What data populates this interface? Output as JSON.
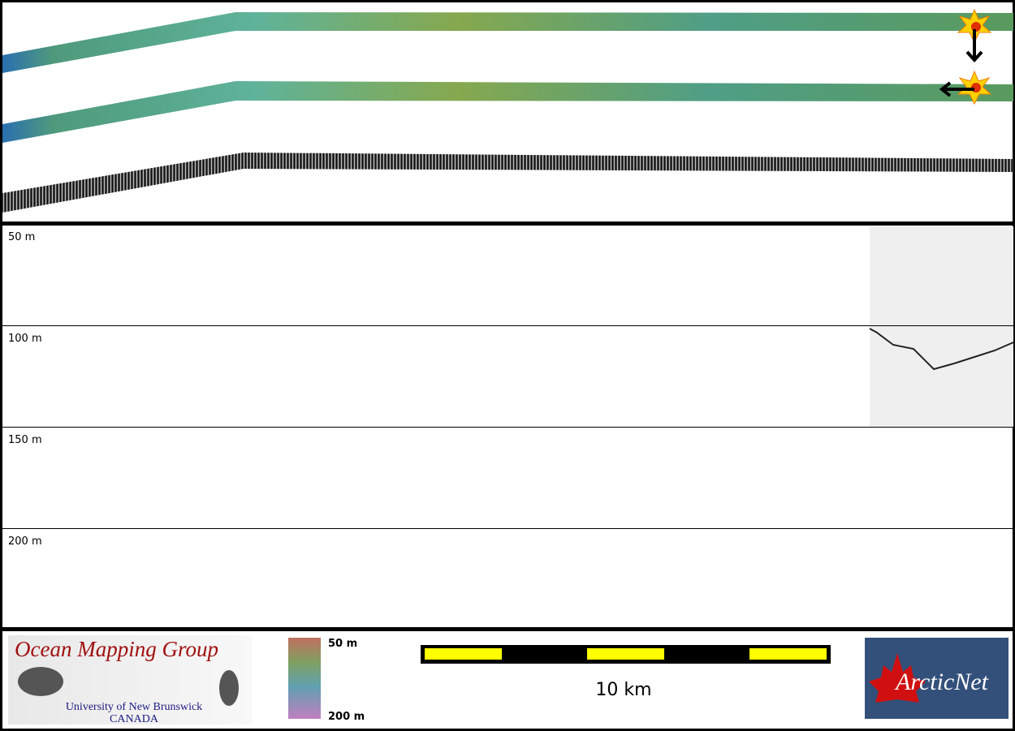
{
  "profile": {
    "depth_labels": [
      "50 m",
      "100 m",
      "150 m",
      "200 m"
    ]
  },
  "footer": {
    "logo_title": "Ocean Mapping Group",
    "logo_line1": "University of New Brunswick",
    "logo_line2": "CANADA",
    "colorbar_top": "50 m",
    "colorbar_bottom": "200 m",
    "scale_label": "10 km",
    "partner_logo": "ArcticNet"
  }
}
